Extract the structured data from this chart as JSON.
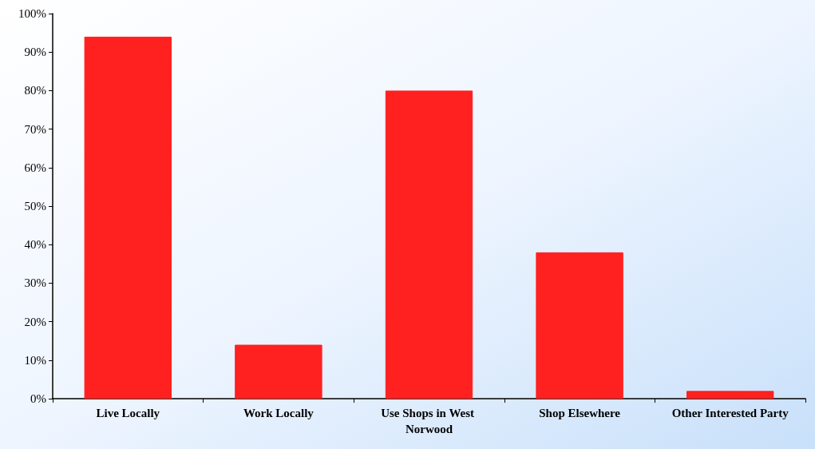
{
  "chart_data": {
    "type": "bar",
    "categories": [
      "Live Locally",
      "Work Locally",
      "Use Shops in West Norwood",
      "Shop Elsewhere",
      "Other Interested Party"
    ],
    "values": [
      94,
      14,
      80,
      38,
      2
    ],
    "color": "#ff2020",
    "ylim": [
      0,
      100
    ],
    "yticks": [
      {
        "value": 0,
        "label": "0%"
      },
      {
        "value": 10,
        "label": "10%"
      },
      {
        "value": 20,
        "label": "20%"
      },
      {
        "value": 30,
        "label": "30%"
      },
      {
        "value": 40,
        "label": "40%"
      },
      {
        "value": 50,
        "label": "50%"
      },
      {
        "value": 60,
        "label": "60%"
      },
      {
        "value": 70,
        "label": "70%"
      },
      {
        "value": 80,
        "label": "80%"
      },
      {
        "value": 90,
        "label": "90%"
      },
      {
        "value": 100,
        "label": "100%"
      }
    ],
    "grid": false
  }
}
